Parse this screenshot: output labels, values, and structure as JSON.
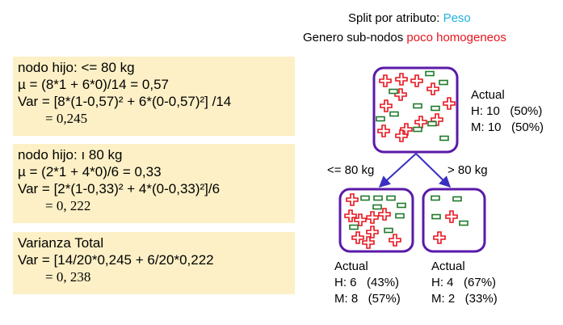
{
  "header": {
    "line1_prefix": "Split por atributo: ",
    "line1_attr": "Peso",
    "line2_prefix": "Genero sub-nodos ",
    "line2_hl": "poco homogeneos"
  },
  "boxes": [
    {
      "lines": [
        "nodo hijo: <= 80 kg",
        "µ = (8*1 + 6*0)/14 = 0,57",
        "Var = [8*(1-0,57)² + 6*(0-0,57)²] /14",
        "= 0,245"
      ]
    },
    {
      "lines": [
        "nodo hijo: ı 80 kg",
        "µ = (2*1 + 4*0)/6 = 0,33",
        "Var = [2*(1-0,33)² + 4*(0-0,33)²]/6",
        "= 0, 222"
      ]
    },
    {
      "lines": [
        "Varianza Total",
        "Var = [14/20*0,245 + 6/20*0,222",
        "= 0, 238"
      ]
    }
  ],
  "tree": {
    "root": {
      "title": "Actual",
      "h": "H: 10   (50%)",
      "m": "M: 10   (50%)"
    },
    "left_edge_label": "<= 80 kg",
    "right_edge_label": "> 80 kg",
    "left": {
      "title": "Actual",
      "h": "H: 6   (43%)",
      "m": "M: 8   (57%)"
    },
    "right": {
      "title": "Actual",
      "h": "H: 4   (67%)",
      "m": "M: 2   (33%)"
    }
  },
  "colors": {
    "node_border": "#5a1aa8",
    "edge": "#3a2fc0",
    "cross": "#e8141d",
    "dash": "#1f7a2a",
    "box_bg": "#fdf0c6"
  }
}
